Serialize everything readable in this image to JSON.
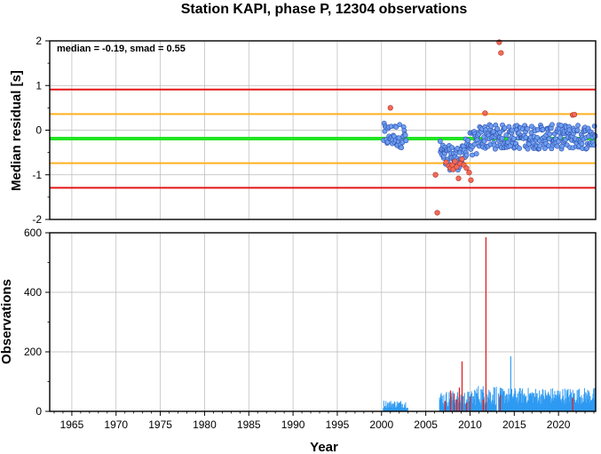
{
  "title": "Station KAPI, phase P, 12304 observations",
  "colors": {
    "green": "#22e422",
    "orange": "#ffb020",
    "red": "#e41616",
    "blue_point": "#6e9ff0",
    "red_point": "#f26a5a",
    "bar_blue": "#2e9af2",
    "bar_red": "#e02020"
  },
  "chart_data": [
    {
      "type": "scatter",
      "ylabel": "Median residual [s]",
      "xlim": [
        1962.5,
        2024.2
      ],
      "ylim": [
        -2,
        2
      ],
      "yticks": [
        "2",
        "1",
        "0",
        "-1",
        "-2"
      ],
      "annotation": "median = -0.19, smad = 0.55",
      "hlines": [
        {
          "y": 0.91,
          "color": "red"
        },
        {
          "y": 0.36,
          "color": "orange"
        },
        {
          "y": -0.19,
          "color": "green"
        },
        {
          "y": -0.74,
          "color": "orange"
        },
        {
          "y": -1.29,
          "color": "red"
        }
      ],
      "outliers": [
        [
          2001.0,
          0.5
        ],
        [
          2006.1,
          -1.0
        ],
        [
          2006.3,
          -1.85
        ],
        [
          2007.3,
          -0.72
        ],
        [
          2007.6,
          -0.8
        ],
        [
          2007.8,
          -0.85
        ],
        [
          2008.0,
          -0.78
        ],
        [
          2008.1,
          -0.88
        ],
        [
          2008.3,
          -0.7
        ],
        [
          2008.5,
          -0.82
        ],
        [
          2008.7,
          -1.08
        ],
        [
          2008.9,
          -0.75
        ],
        [
          2009.1,
          -0.65
        ],
        [
          2009.3,
          -0.78
        ],
        [
          2009.6,
          -0.85
        ],
        [
          2009.9,
          -0.95
        ],
        [
          2010.1,
          -1.12
        ],
        [
          2011.7,
          0.38
        ],
        [
          2013.3,
          1.97
        ],
        [
          2013.5,
          1.73
        ],
        [
          2021.6,
          0.34
        ],
        [
          2021.8,
          0.35
        ]
      ]
    },
    {
      "type": "bar",
      "ylabel": "Observations",
      "xlabel": "Year",
      "xlim": [
        1962.5,
        2024.2
      ],
      "ylim": [
        0,
        600
      ],
      "yticks": [
        "600",
        "400",
        "200",
        "0"
      ],
      "xticks": [
        "1965",
        "1970",
        "1975",
        "1980",
        "1985",
        "1990",
        "1995",
        "2000",
        "2005",
        "2010",
        "2015",
        "2020"
      ],
      "red_spikes": [
        [
          2007.2,
          35
        ],
        [
          2007.8,
          70
        ],
        [
          2008.2,
          60
        ],
        [
          2008.5,
          40
        ],
        [
          2008.8,
          80
        ],
        [
          2009.1,
          168
        ],
        [
          2009.6,
          30
        ],
        [
          2010.0,
          50
        ],
        [
          2011.5,
          40
        ],
        [
          2011.8,
          585
        ],
        [
          2013.4,
          55
        ],
        [
          2021.6,
          45
        ]
      ]
    }
  ]
}
